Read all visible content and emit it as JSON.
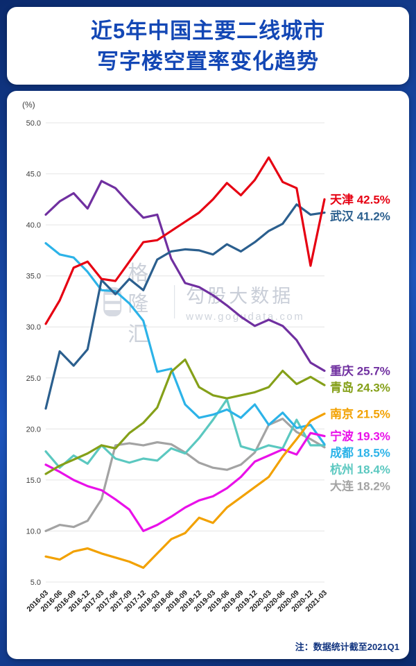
{
  "header": {
    "title_line1": "近5年中国主要二线城市",
    "title_line2": "写字楼空置率变化趋势",
    "title_color": "#1347b5"
  },
  "watermark": {
    "logo_text": "格隆汇",
    "brand": "勾股大数据",
    "url": "www.gogudata.com"
  },
  "footnote": "注：数据统计截至2021Q1",
  "chart_data": {
    "type": "line",
    "title": "近5年中国主要二线城市写字楼空置率变化趋势",
    "xlabel": "",
    "ylabel": "(%)",
    "ylim": [
      5.0,
      50.0
    ],
    "y_ticks": [
      5,
      10,
      15,
      20,
      25,
      30,
      35,
      40,
      45,
      50
    ],
    "grid": true,
    "legend_position": "right",
    "categories": [
      "2016-03",
      "2016-06",
      "2016-09",
      "2016-12",
      "2017-03",
      "2017-06",
      "2017-09",
      "2017-12",
      "2018-03",
      "2018-06",
      "2018-09",
      "2018-12",
      "2019-03",
      "2019-06",
      "2019-09",
      "2019-12",
      "2020-03",
      "2020-06",
      "2020-09",
      "2020-12",
      "2021-03"
    ],
    "series": [
      {
        "name": "天津",
        "label": "天津 42.5%",
        "end_value": 42.5,
        "color": "#e60012",
        "values": [
          30.3,
          32.6,
          35.8,
          36.4,
          34.7,
          34.5,
          36.4,
          38.3,
          38.5,
          39.4,
          40.3,
          41.2,
          42.5,
          44.1,
          42.9,
          44.4,
          46.6,
          44.2,
          43.6,
          36.0,
          42.5
        ]
      },
      {
        "name": "武汉",
        "label": "武汉 41.2%",
        "end_value": 41.2,
        "color": "#2b5f8e",
        "values": [
          22.0,
          27.6,
          26.2,
          27.8,
          34.6,
          33.2,
          34.7,
          33.6,
          36.6,
          37.4,
          37.6,
          37.5,
          37.1,
          38.1,
          37.4,
          38.3,
          39.4,
          40.1,
          42.0,
          41.0,
          41.2
        ]
      },
      {
        "name": "重庆",
        "label": "重庆 25.7%",
        "end_value": 25.7,
        "color": "#7030a0",
        "values": [
          41.0,
          42.3,
          43.1,
          41.6,
          44.3,
          43.6,
          42.1,
          40.7,
          41.0,
          36.7,
          34.3,
          33.9,
          33.1,
          32.1,
          31.0,
          30.1,
          30.7,
          30.1,
          28.7,
          26.5,
          25.7
        ]
      },
      {
        "name": "青岛",
        "label": "青岛 24.3%",
        "end_value": 24.3,
        "color": "#85a019",
        "values": [
          15.6,
          16.4,
          17.0,
          17.6,
          18.4,
          18.1,
          19.6,
          20.6,
          22.1,
          25.6,
          26.8,
          24.1,
          23.3,
          23.0,
          23.3,
          23.6,
          24.1,
          25.7,
          24.4,
          25.1,
          24.3
        ]
      },
      {
        "name": "南京",
        "label": "南京 21.5%",
        "end_value": 21.5,
        "color": "#f2a100",
        "values": [
          7.5,
          7.2,
          8.0,
          8.3,
          7.8,
          7.4,
          7.0,
          6.4,
          7.8,
          9.2,
          9.8,
          11.3,
          10.8,
          12.3,
          13.3,
          14.3,
          15.3,
          17.3,
          19.0,
          20.8,
          21.5
        ]
      },
      {
        "name": "宁波",
        "label": "宁波 19.3%",
        "end_value": 19.3,
        "color": "#e911e9",
        "values": [
          16.5,
          15.8,
          15.0,
          14.4,
          14.0,
          13.1,
          12.1,
          10.0,
          10.6,
          11.4,
          12.3,
          13.0,
          13.4,
          14.2,
          15.3,
          16.8,
          17.4,
          18.0,
          17.5,
          19.6,
          19.3
        ]
      },
      {
        "name": "成都",
        "label": "成都 18.5%",
        "end_value": 18.5,
        "color": "#2cb3e8",
        "values": [
          38.2,
          37.1,
          36.8,
          35.4,
          33.6,
          33.5,
          32.3,
          30.6,
          25.6,
          25.9,
          22.4,
          21.1,
          21.4,
          21.9,
          21.1,
          22.4,
          20.4,
          21.6,
          20.1,
          20.4,
          18.5
        ]
      },
      {
        "name": "杭州",
        "label": "杭州 18.4%",
        "end_value": 18.4,
        "color": "#5bc8c0",
        "values": [
          17.8,
          16.2,
          17.4,
          16.6,
          18.4,
          17.1,
          16.7,
          17.1,
          16.9,
          18.1,
          17.6,
          19.1,
          20.9,
          22.9,
          18.3,
          17.9,
          18.4,
          18.1,
          20.9,
          18.4,
          18.4
        ]
      },
      {
        "name": "大连",
        "label": "大连 18.2%",
        "end_value": 18.2,
        "color": "#a3a3a3",
        "values": [
          10.0,
          10.6,
          10.4,
          11.0,
          13.1,
          18.4,
          18.6,
          18.4,
          18.7,
          18.5,
          17.7,
          16.7,
          16.2,
          16.0,
          16.5,
          17.7,
          20.4,
          21.0,
          19.7,
          19.0,
          18.2
        ]
      }
    ]
  }
}
